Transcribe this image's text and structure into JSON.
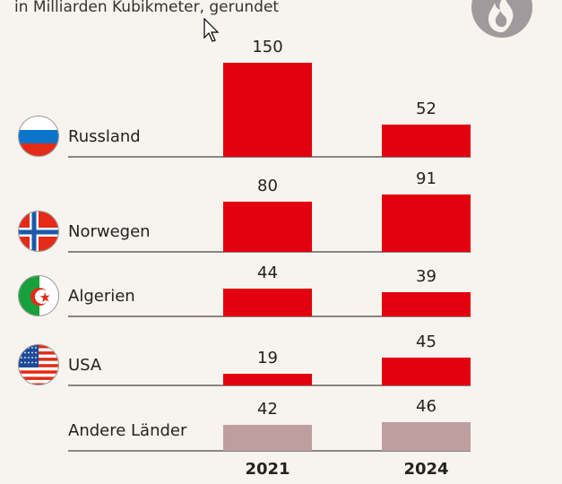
{
  "chart_data": {
    "type": "bar",
    "subtitle": "in Milliarden Kubikmeter, gerundet",
    "categories": [
      "Russland",
      "Norwegen",
      "Algerien",
      "USA",
      "Andere Länder"
    ],
    "years": [
      "2021",
      "2024"
    ],
    "series": [
      {
        "name": "2021",
        "values": [
          150,
          80,
          44,
          19,
          42
        ]
      },
      {
        "name": "2024",
        "values": [
          52,
          91,
          39,
          45,
          46
        ]
      }
    ],
    "flags": [
      "russia-flag-icon",
      "norway-flag-icon",
      "algeria-flag-icon",
      "usa-flag-icon",
      null
    ],
    "colors": {
      "country": "#e3000f",
      "other": "#bf9ea0",
      "background": "#f7f3ee",
      "baseline": "#8a8482"
    }
  }
}
